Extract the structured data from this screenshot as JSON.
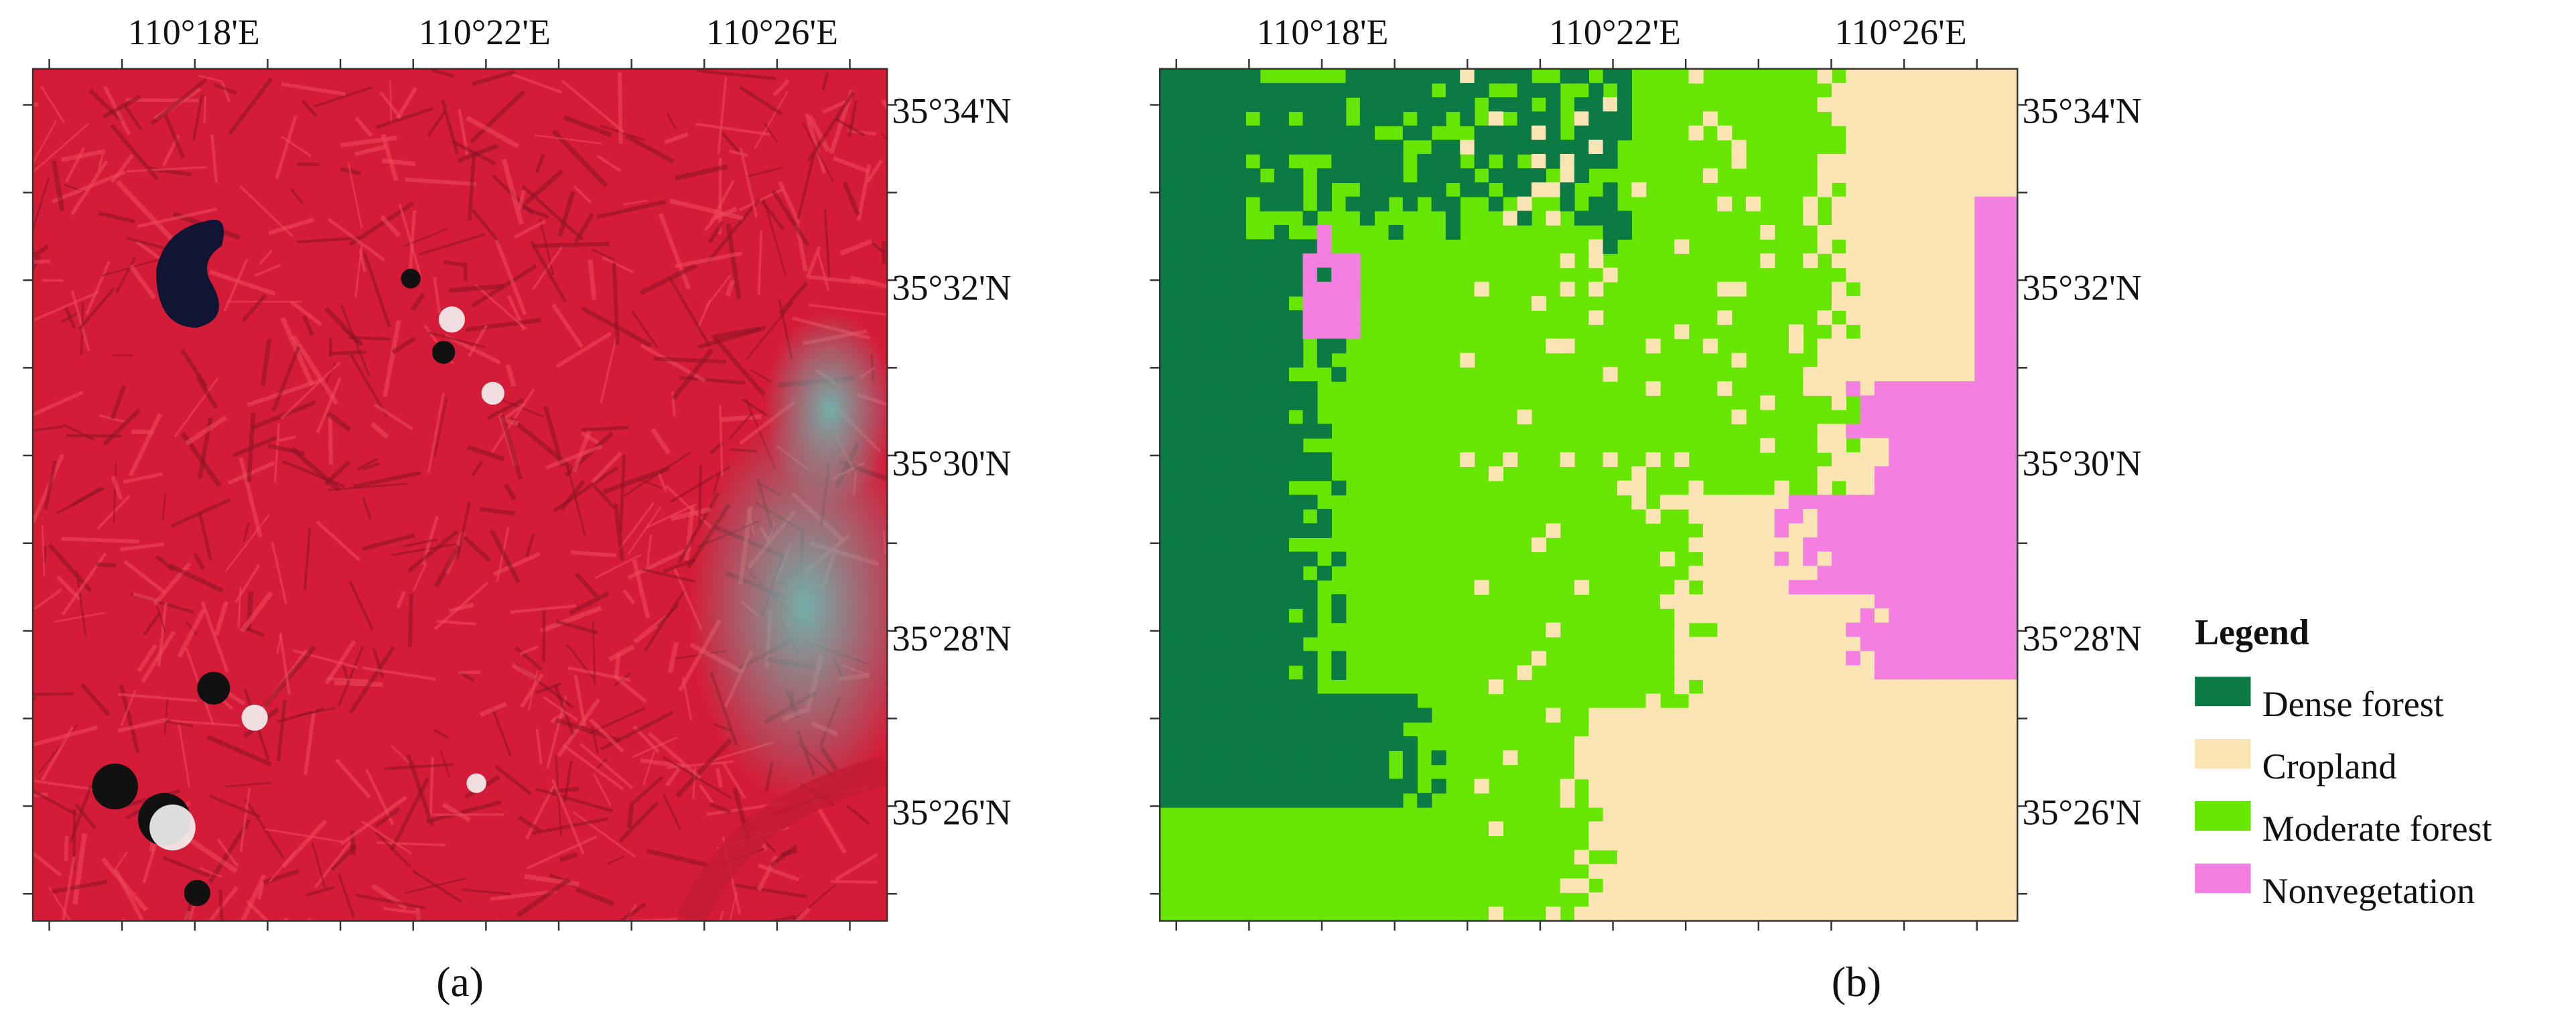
{
  "panels": [
    {
      "caption": "(a)",
      "top_labels": [
        "110°18'E",
        "110°22'E",
        "110°26'E"
      ],
      "right_labels": [
        "35°34'N",
        "35°32'N",
        "35°30'N",
        "35°28'N",
        "35°26'N"
      ]
    },
    {
      "caption": "(b)",
      "top_labels": [
        "110°18'E",
        "110°22'E",
        "110°26'E"
      ],
      "right_labels": [
        "35°34'N",
        "35°32'N",
        "35°30'N",
        "35°28'N",
        "35°26'N"
      ]
    }
  ],
  "legend": {
    "title": "Legend",
    "items": [
      {
        "label": "Dense forest",
        "color": "#0b7a45"
      },
      {
        "label": "Cropland",
        "color": "#fbe4b4"
      },
      {
        "label": "Moderate forest",
        "color": "#66e600"
      },
      {
        "label": "Nonvegetation",
        "color": "#f47fe0"
      }
    ]
  }
}
